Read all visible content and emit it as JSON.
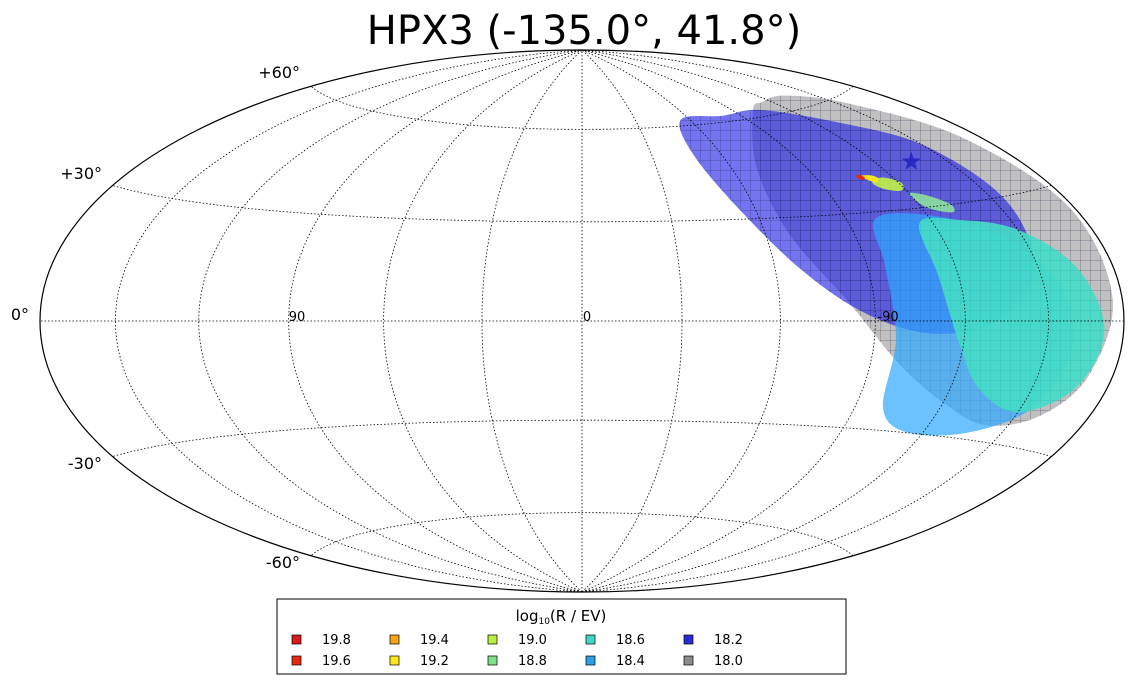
{
  "chart_data": {
    "type": "scatter",
    "title": "HPX3 (-135.0°, 41.8°)",
    "projection": "aitoff/mollweide-like all-sky",
    "center_lon": 0,
    "meridian_step_deg": 30,
    "parallel_step_deg": 30,
    "grid": true,
    "lat_tick_labels": [
      "+60°",
      "+30°",
      "0°",
      "-30°",
      "-60°"
    ],
    "lon_tick_labels": [
      "90",
      "0",
      "-90"
    ],
    "source_marker": {
      "lon": -135.0,
      "lat": 41.8,
      "marker": "star",
      "color": "#2020c0"
    },
    "legend": {
      "title_main": "log",
      "title_sub": "10",
      "title_rest": "(R / EV)",
      "placement": "bottom-center",
      "entries": [
        {
          "label": "19.8",
          "color": "#d81c1c"
        },
        {
          "label": "19.6",
          "color": "#e62a12"
        },
        {
          "label": "19.4",
          "color": "#f5a414"
        },
        {
          "label": "19.2",
          "color": "#ffe81a"
        },
        {
          "label": "19.0",
          "color": "#b8f040"
        },
        {
          "label": "18.8",
          "color": "#7fe08a"
        },
        {
          "label": "18.6",
          "color": "#44d6c4"
        },
        {
          "label": "18.4",
          "color": "#2e9ee6"
        },
        {
          "label": "18.2",
          "color": "#2a2ad6"
        },
        {
          "label": "18.0",
          "color": "#8c8c8c"
        }
      ]
    },
    "series": [
      {
        "name": "18.0",
        "color": "#8c8c8c",
        "opacity": 0.55,
        "hatch": true,
        "outline": [
          [
            -100,
            62
          ],
          [
            -115,
            64
          ],
          [
            -135,
            64
          ],
          [
            -155,
            58
          ],
          [
            -172,
            44
          ],
          [
            -178,
            25
          ],
          [
            -176,
            5
          ],
          [
            -170,
            -12
          ],
          [
            -160,
            -22
          ],
          [
            -142,
            -26
          ],
          [
            -122,
            -22
          ],
          [
            -100,
            -12
          ],
          [
            -82,
            5
          ],
          [
            -68,
            25
          ],
          [
            -70,
            45
          ]
        ]
      },
      {
        "name": "18.2",
        "color": "#1e1ee8",
        "opacity": 0.62,
        "hatch": true,
        "outline": [
          [
            -80,
            62
          ],
          [
            -105,
            62
          ],
          [
            -130,
            55
          ],
          [
            -150,
            45
          ],
          [
            -155,
            30
          ],
          [
            -150,
            15
          ],
          [
            -140,
            5
          ],
          [
            -125,
            -2
          ],
          [
            -105,
            -3
          ],
          [
            -85,
            3
          ],
          [
            -68,
            15
          ],
          [
            -55,
            32
          ],
          [
            -48,
            50
          ],
          [
            -55,
            62
          ]
        ]
      },
      {
        "name": "18.4",
        "color": "#2ea8ff",
        "opacity": 0.7,
        "hatch": false,
        "outline": [
          [
            -100,
            28
          ],
          [
            -120,
            28
          ],
          [
            -140,
            22
          ],
          [
            -155,
            10
          ],
          [
            -160,
            -5
          ],
          [
            -155,
            -20
          ],
          [
            -138,
            -28
          ],
          [
            -115,
            -30
          ],
          [
            -100,
            -24
          ],
          [
            -97,
            -5
          ],
          [
            -96,
            15
          ]
        ]
      },
      {
        "name": "18.6",
        "color": "#44dcc8",
        "opacity": 0.92,
        "hatch": true,
        "outline": [
          [
            -115,
            26
          ],
          [
            -130,
            26
          ],
          [
            -150,
            22
          ],
          [
            -165,
            12
          ],
          [
            -172,
            -2
          ],
          [
            -167,
            -15
          ],
          [
            -150,
            -22
          ],
          [
            -130,
            -17
          ],
          [
            -118,
            -5
          ],
          [
            -113,
            12
          ]
        ]
      },
      {
        "name": "18.8",
        "color": "#8fe89a",
        "opacity": 0.85,
        "hatch": false,
        "outline": [
          [
            -120,
            34
          ],
          [
            -126,
            33
          ],
          [
            -132,
            30
          ],
          [
            -130,
            28
          ],
          [
            -122,
            30
          ]
        ]
      },
      {
        "name": "19.0",
        "color": "#c2f048",
        "opacity": 0.9,
        "hatch": false,
        "outline": [
          [
            -110,
            38
          ],
          [
            -116,
            39
          ],
          [
            -121,
            37
          ],
          [
            -118,
            35
          ],
          [
            -112,
            36
          ]
        ]
      },
      {
        "name": "19.2",
        "color": "#ffe81a",
        "opacity": 0.95,
        "hatch": false,
        "outline": [
          [
            -108,
            40
          ],
          [
            -112,
            40
          ],
          [
            -114,
            39
          ],
          [
            -111,
            38
          ]
        ]
      },
      {
        "name": "19.6",
        "color": "#e62a12",
        "opacity": 1.0,
        "hatch": false,
        "outline": [
          [
            -106,
            40
          ],
          [
            -108,
            40.5
          ],
          [
            -109,
            39.5
          ],
          [
            -107,
            39
          ]
        ]
      }
    ]
  }
}
